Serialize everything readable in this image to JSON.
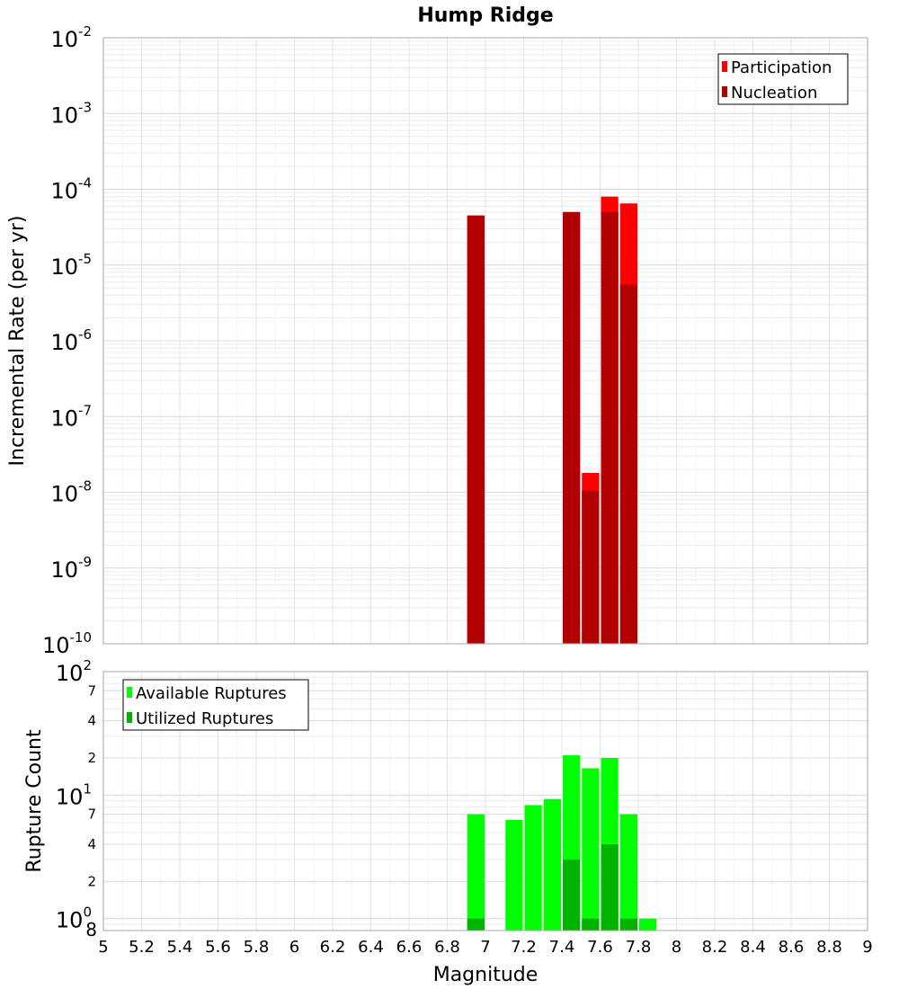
{
  "chart_data": [
    {
      "type": "bar",
      "title": "Hump Ridge",
      "ylabel": "Incremental Rate (per yr)",
      "xlabel": "",
      "y_scale": "log",
      "ylim": [
        1e-10,
        0.01
      ],
      "xlim": [
        5,
        9
      ],
      "y_ticks": [
        {
          "base": "10",
          "exp": "-2",
          "value": 0.01
        },
        {
          "base": "10",
          "exp": "-3",
          "value": 0.001
        },
        {
          "base": "10",
          "exp": "-4",
          "value": 0.0001
        },
        {
          "base": "10",
          "exp": "-5",
          "value": 1e-05
        },
        {
          "base": "10",
          "exp": "-6",
          "value": 1e-06
        },
        {
          "base": "10",
          "exp": "-7",
          "value": 1e-07
        },
        {
          "base": "10",
          "exp": "-8",
          "value": 1e-08
        },
        {
          "base": "10",
          "exp": "-9",
          "value": 1e-09
        },
        {
          "base": "10",
          "exp": "-10",
          "value": 1e-10
        }
      ],
      "bin_width": 0.1,
      "grid": true,
      "legend": {
        "position": "top-right"
      },
      "x": [
        6.95,
        7.45,
        7.55,
        7.65,
        7.75
      ],
      "series": [
        {
          "name": "Participation",
          "color": "#ff0000",
          "values": [
            4.5e-05,
            5e-05,
            1.8e-08,
            8e-05,
            6.5e-05
          ]
        },
        {
          "name": "Nucleation",
          "color": "#b30000",
          "values": [
            4.5e-05,
            5e-05,
            1.05e-08,
            5e-05,
            5.5e-06
          ]
        }
      ]
    },
    {
      "type": "bar",
      "title": "",
      "ylabel": "Rupture Count",
      "xlabel": "Magnitude",
      "y_scale": "log",
      "ylim": [
        0.8,
        100
      ],
      "xlim": [
        5,
        9
      ],
      "y_ticks": [
        {
          "base": "10",
          "exp": "2",
          "value": 100
        },
        {
          "base": "",
          "exp": "",
          "label": "7",
          "value": 70
        },
        {
          "base": "",
          "exp": "",
          "label": "4",
          "value": 40
        },
        {
          "base": "",
          "exp": "",
          "label": "2",
          "value": 20
        },
        {
          "base": "10",
          "exp": "1",
          "value": 10
        },
        {
          "base": "",
          "exp": "",
          "label": "7",
          "value": 7
        },
        {
          "base": "",
          "exp": "",
          "label": "4",
          "value": 4
        },
        {
          "base": "",
          "exp": "",
          "label": "2",
          "value": 2
        },
        {
          "base": "10",
          "exp": "0",
          "value": 1
        },
        {
          "base": "",
          "exp": "",
          "label": "8",
          "value": 0.8
        }
      ],
      "x_ticks": [
        "5",
        "5.2",
        "5.4",
        "5.6",
        "5.8",
        "6",
        "6.2",
        "6.4",
        "6.6",
        "6.8",
        "7",
        "7.2",
        "7.4",
        "7.6",
        "7.8",
        "8",
        "8.2",
        "8.4",
        "8.6",
        "8.8",
        "9"
      ],
      "bin_width": 0.1,
      "grid": true,
      "legend": {
        "position": "top-left"
      },
      "x": [
        6.95,
        7.15,
        7.25,
        7.35,
        7.45,
        7.55,
        7.65,
        7.75,
        7.85
      ],
      "series": [
        {
          "name": "Available Ruptures",
          "color": "#00ff00",
          "values": [
            7,
            6.3,
            8.3,
            9.3,
            21,
            16.5,
            20,
            7,
            1
          ]
        },
        {
          "name": "Utilized Ruptures",
          "color": "#00b300",
          "values": [
            1,
            null,
            null,
            null,
            3,
            1,
            4,
            1,
            null
          ]
        }
      ]
    }
  ]
}
